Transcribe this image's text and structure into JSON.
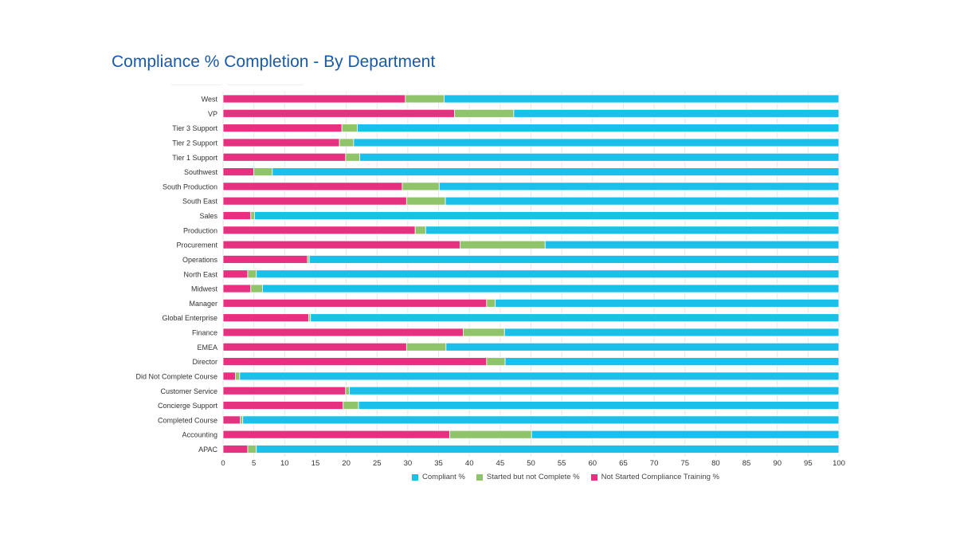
{
  "title": "Compliance % Completion - By Department",
  "colors": {
    "compliant": "#1abfea",
    "started": "#8fc46a",
    "not_started": "#e5317f",
    "gridline": "#e6e6e6",
    "axis_text": "#333333"
  },
  "chart_data": {
    "type": "bar",
    "orientation": "horizontal",
    "stacked": true,
    "title": "Compliance % Completion - By Department",
    "xlim": [
      0,
      100
    ],
    "xticks": [
      0,
      5,
      10,
      15,
      20,
      25,
      30,
      35,
      40,
      45,
      50,
      55,
      60,
      65,
      70,
      75,
      80,
      85,
      90,
      95,
      100
    ],
    "grid": true,
    "legend_position": "bottom",
    "categories": [
      "West",
      "VP",
      "Tier 3 Support",
      "Tier 2 Support",
      "Tier 1 Support",
      "Southwest",
      "South Production",
      "South East",
      "Sales",
      "Production",
      "Procurement",
      "Operations",
      "North East",
      "Midwest",
      "Manager",
      "Global Enterprise",
      "Finance",
      "EMEA",
      "Director",
      "Did Not Complete Course",
      "Customer Service",
      "Concierge Support",
      "Completed Course",
      "Accounting",
      "APAC"
    ],
    "series": [
      {
        "name": "Not Started Compliance Training %",
        "key": "not_started",
        "values": [
          29.6,
          37.6,
          19.3,
          18.9,
          19.9,
          5.0,
          29.1,
          29.8,
          4.5,
          31.2,
          38.5,
          13.7,
          4.0,
          4.5,
          42.8,
          13.9,
          39.0,
          29.8,
          42.8,
          2.0,
          19.9,
          19.5,
          2.8,
          36.8,
          4.0
        ],
        "color": "#e5317f"
      },
      {
        "name": "Started but not Complete %",
        "key": "started",
        "values": [
          6.3,
          9.6,
          2.5,
          2.3,
          2.3,
          3.0,
          6.0,
          6.3,
          0.6,
          1.7,
          13.8,
          0.3,
          1.4,
          1.9,
          1.4,
          0.3,
          6.7,
          6.4,
          3.0,
          0.7,
          0.6,
          2.5,
          0.4,
          13.3,
          1.4
        ],
        "color": "#8fc46a"
      },
      {
        "name": "Compliant %",
        "key": "compliant",
        "values": [
          64.1,
          52.8,
          78.2,
          78.8,
          77.8,
          92.0,
          64.9,
          63.9,
          94.9,
          67.1,
          47.7,
          86.0,
          94.6,
          93.6,
          55.8,
          85.8,
          54.3,
          63.8,
          54.2,
          97.3,
          79.5,
          78.0,
          96.8,
          49.9,
          94.6
        ],
        "color": "#1abfea"
      }
    ]
  },
  "legend": [
    {
      "label": "Compliant %",
      "color": "#1abfea"
    },
    {
      "label": "Started but not Complete %",
      "color": "#8fc46a"
    },
    {
      "label": "Not Started Compliance Training %",
      "color": "#e5317f"
    }
  ]
}
